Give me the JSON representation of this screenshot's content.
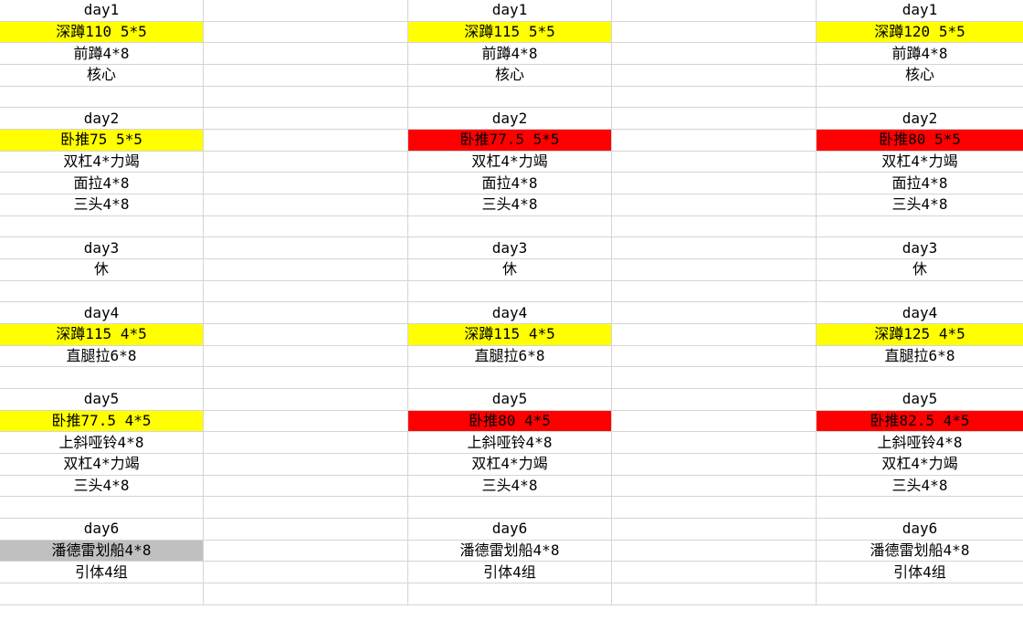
{
  "colors": {
    "yellow": "#ffff00",
    "red": "#ff0000",
    "gray": "#c0c0c0",
    "white": "#ffffff"
  },
  "columns": [
    {
      "rows": [
        {
          "text": "day1",
          "fill": "white"
        },
        {
          "text": "深蹲110 5*5",
          "fill": "yellow"
        },
        {
          "text": "前蹲4*8",
          "fill": "white"
        },
        {
          "text": "核心",
          "fill": "white"
        },
        {
          "text": "",
          "fill": "white"
        },
        {
          "text": "day2",
          "fill": "white"
        },
        {
          "text": "卧推75 5*5",
          "fill": "yellow"
        },
        {
          "text": "双杠4*力竭",
          "fill": "white"
        },
        {
          "text": "面拉4*8",
          "fill": "white"
        },
        {
          "text": "三头4*8",
          "fill": "white"
        },
        {
          "text": "",
          "fill": "white"
        },
        {
          "text": "day3",
          "fill": "white"
        },
        {
          "text": "休",
          "fill": "white"
        },
        {
          "text": "",
          "fill": "white"
        },
        {
          "text": "day4",
          "fill": "white"
        },
        {
          "text": "深蹲115 4*5",
          "fill": "yellow"
        },
        {
          "text": "直腿拉6*8",
          "fill": "white"
        },
        {
          "text": "",
          "fill": "white"
        },
        {
          "text": "day5",
          "fill": "white"
        },
        {
          "text": "卧推77.5 4*5",
          "fill": "yellow"
        },
        {
          "text": "上斜哑铃4*8",
          "fill": "white"
        },
        {
          "text": "双杠4*力竭",
          "fill": "white"
        },
        {
          "text": "三头4*8",
          "fill": "white"
        },
        {
          "text": "",
          "fill": "white"
        },
        {
          "text": "day6",
          "fill": "white"
        },
        {
          "text": "潘德雷划船4*8",
          "fill": "gray"
        },
        {
          "text": "引体4组",
          "fill": "white"
        },
        {
          "text": "",
          "fill": "white"
        }
      ]
    },
    {
      "rows": [
        {
          "text": "day1",
          "fill": "white"
        },
        {
          "text": "深蹲115 5*5",
          "fill": "yellow"
        },
        {
          "text": "前蹲4*8",
          "fill": "white"
        },
        {
          "text": "核心",
          "fill": "white"
        },
        {
          "text": "",
          "fill": "white"
        },
        {
          "text": "day2",
          "fill": "white"
        },
        {
          "text": "卧推77.5 5*5",
          "fill": "red"
        },
        {
          "text": "双杠4*力竭",
          "fill": "white"
        },
        {
          "text": "面拉4*8",
          "fill": "white"
        },
        {
          "text": "三头4*8",
          "fill": "white"
        },
        {
          "text": "",
          "fill": "white"
        },
        {
          "text": "day3",
          "fill": "white"
        },
        {
          "text": "休",
          "fill": "white"
        },
        {
          "text": "",
          "fill": "white"
        },
        {
          "text": "day4",
          "fill": "white"
        },
        {
          "text": "深蹲115 4*5",
          "fill": "yellow"
        },
        {
          "text": "直腿拉6*8",
          "fill": "white"
        },
        {
          "text": "",
          "fill": "white"
        },
        {
          "text": "day5",
          "fill": "white"
        },
        {
          "text": "卧推80 4*5",
          "fill": "red"
        },
        {
          "text": "上斜哑铃4*8",
          "fill": "white"
        },
        {
          "text": "双杠4*力竭",
          "fill": "white"
        },
        {
          "text": "三头4*8",
          "fill": "white"
        },
        {
          "text": "",
          "fill": "white"
        },
        {
          "text": "day6",
          "fill": "white"
        },
        {
          "text": "潘德雷划船4*8",
          "fill": "white"
        },
        {
          "text": "引体4组",
          "fill": "white"
        },
        {
          "text": "",
          "fill": "white"
        }
      ]
    },
    {
      "rows": [
        {
          "text": "day1",
          "fill": "white"
        },
        {
          "text": "深蹲120 5*5",
          "fill": "yellow"
        },
        {
          "text": "前蹲4*8",
          "fill": "white"
        },
        {
          "text": "核心",
          "fill": "white"
        },
        {
          "text": "",
          "fill": "white"
        },
        {
          "text": "day2",
          "fill": "white"
        },
        {
          "text": "卧推80 5*5",
          "fill": "red"
        },
        {
          "text": "双杠4*力竭",
          "fill": "white"
        },
        {
          "text": "面拉4*8",
          "fill": "white"
        },
        {
          "text": "三头4*8",
          "fill": "white"
        },
        {
          "text": "",
          "fill": "white"
        },
        {
          "text": "day3",
          "fill": "white"
        },
        {
          "text": "休",
          "fill": "white"
        },
        {
          "text": "",
          "fill": "white"
        },
        {
          "text": "day4",
          "fill": "white"
        },
        {
          "text": "深蹲125 4*5",
          "fill": "yellow"
        },
        {
          "text": "直腿拉6*8",
          "fill": "white"
        },
        {
          "text": "",
          "fill": "white"
        },
        {
          "text": "day5",
          "fill": "white"
        },
        {
          "text": "卧推82.5 4*5",
          "fill": "red"
        },
        {
          "text": "上斜哑铃4*8",
          "fill": "white"
        },
        {
          "text": "双杠4*力竭",
          "fill": "white"
        },
        {
          "text": "三头4*8",
          "fill": "white"
        },
        {
          "text": "",
          "fill": "white"
        },
        {
          "text": "day6",
          "fill": "white"
        },
        {
          "text": "潘德雷划船4*8",
          "fill": "white"
        },
        {
          "text": "引体4组",
          "fill": "white"
        },
        {
          "text": "",
          "fill": "white"
        }
      ]
    }
  ]
}
